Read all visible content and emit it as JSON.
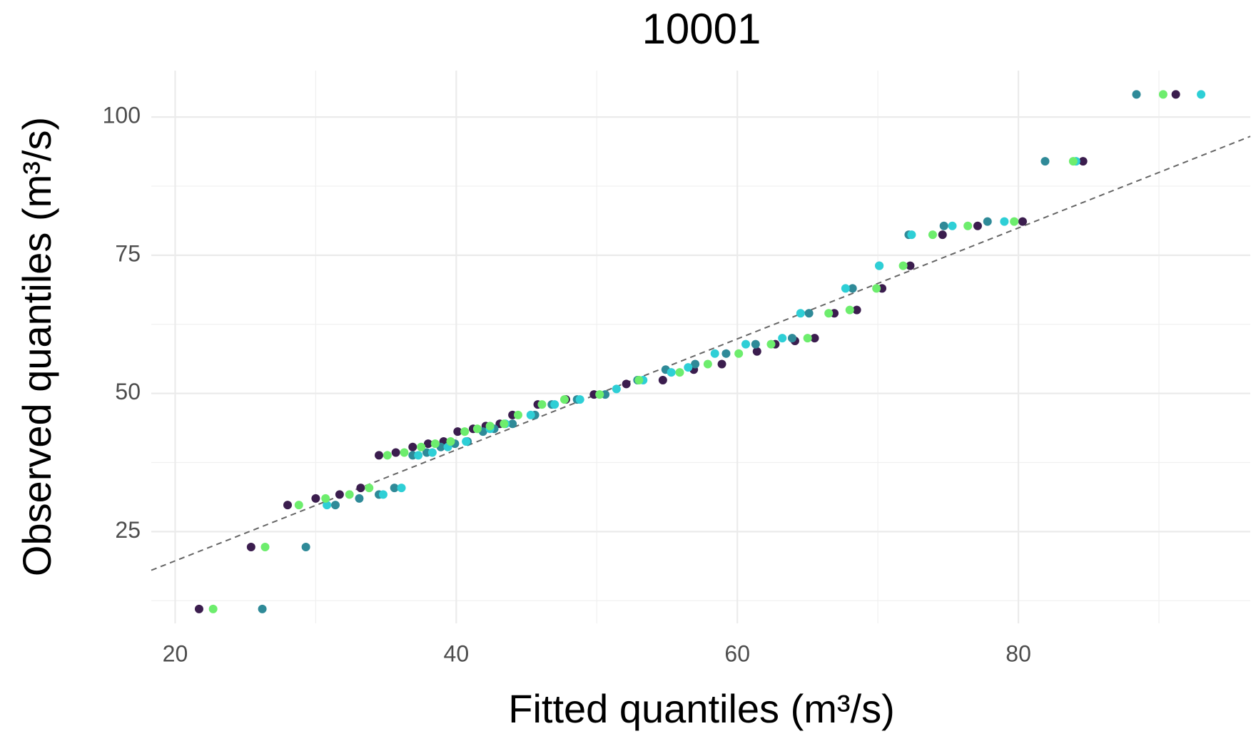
{
  "chart_data": {
    "type": "scatter",
    "title": "10001",
    "x_label": "Fitted quantiles (m³/s)",
    "y_label": "Observed quantiles (m³/s)",
    "xlim": [
      18.3,
      96.5
    ],
    "ylim": [
      8.4,
      108.4
    ],
    "xticks": [
      20,
      40,
      60,
      80
    ],
    "yticks": [
      25,
      50,
      75,
      100
    ],
    "x_minor_grid": [
      30,
      50,
      70,
      90
    ],
    "y_minor_grid": [
      12.5,
      37.5,
      62.5,
      87.5
    ],
    "grid": true,
    "reference_line": {
      "x": [
        18.3,
        96.5
      ],
      "y": [
        18.0,
        96.5
      ],
      "color": "#666666",
      "dashed": true
    },
    "series": [
      {
        "color": "#3b1d4e",
        "x": [
          21.7,
          25.4,
          28.0,
          30.0,
          31.7,
          33.2,
          34.5,
          35.7,
          36.9,
          38.0,
          39.1,
          40.1,
          41.2,
          42.1,
          43.1,
          44.0,
          45.8,
          47.8,
          49.8,
          52.1,
          54.7,
          56.9,
          58.9,
          61.4,
          62.7,
          64.1,
          65.5,
          66.9,
          68.5,
          70.3,
          72.3,
          74.6,
          77.1,
          80.3,
          84.6,
          91.2
        ],
        "y": [
          11.0,
          22.2,
          29.8,
          31.0,
          31.7,
          32.9,
          38.8,
          39.3,
          40.3,
          40.9,
          41.3,
          43.1,
          43.6,
          44.1,
          44.5,
          46.1,
          48.0,
          48.9,
          49.8,
          51.7,
          52.4,
          54.3,
          55.3,
          57.6,
          58.9,
          59.5,
          60.0,
          64.5,
          65.1,
          69.0,
          73.1,
          78.7,
          80.3,
          81.1,
          92.0,
          104.1
        ]
      },
      {
        "color": "#2f8a98",
        "x": [
          26.2,
          29.3,
          31.4,
          33.1,
          34.5,
          35.6,
          36.9,
          37.9,
          38.9,
          39.9,
          40.8,
          41.9,
          42.7,
          44.0,
          45.6,
          46.8,
          48.6,
          50.6,
          52.9,
          54.9,
          57.0,
          59.2,
          61.3,
          63.9,
          65.1,
          68.2,
          70.1,
          72.2,
          74.7,
          77.8,
          81.9,
          88.4
        ],
        "y": [
          11.0,
          22.2,
          29.8,
          31.0,
          31.7,
          32.9,
          38.8,
          39.3,
          40.3,
          40.9,
          41.3,
          43.1,
          43.6,
          44.5,
          46.1,
          48.0,
          48.9,
          49.8,
          52.4,
          54.3,
          55.3,
          57.2,
          58.9,
          60.0,
          64.5,
          69.0,
          73.1,
          78.7,
          80.3,
          81.1,
          92.0,
          104.1
        ]
      },
      {
        "color": "#2ecfd6",
        "x": [
          30.8,
          34.8,
          36.1,
          37.3,
          38.3,
          39.4,
          40.7,
          42.4,
          43.5,
          45.3,
          47.0,
          48.8,
          51.4,
          53.3,
          55.3,
          56.5,
          58.4,
          60.6,
          63.2,
          64.5,
          67.7,
          70.1,
          72.4,
          75.3,
          79.0,
          84.1,
          93.0
        ],
        "y": [
          29.8,
          31.7,
          32.9,
          38.8,
          39.3,
          40.3,
          41.3,
          43.6,
          44.5,
          46.1,
          48.0,
          48.9,
          50.8,
          52.4,
          53.8,
          54.7,
          57.2,
          58.9,
          60.0,
          64.5,
          69.0,
          73.1,
          78.7,
          80.3,
          81.1,
          92.0,
          104.1
        ]
      },
      {
        "color": "#6ded6d",
        "x": [
          22.7,
          26.4,
          28.8,
          30.7,
          32.4,
          33.8,
          35.1,
          36.3,
          37.5,
          38.5,
          39.6,
          40.6,
          41.5,
          42.4,
          43.4,
          44.4,
          46.1,
          47.7,
          50.2,
          53.0,
          55.9,
          57.9,
          60.1,
          62.4,
          65.0,
          66.5,
          68.0,
          69.9,
          71.8,
          73.9,
          76.4,
          79.7,
          83.9,
          90.3
        ],
        "y": [
          11.0,
          22.2,
          29.8,
          31.0,
          31.7,
          32.9,
          38.8,
          39.3,
          40.3,
          40.9,
          41.3,
          43.1,
          43.6,
          44.1,
          44.5,
          46.1,
          48.0,
          48.9,
          49.8,
          52.4,
          53.8,
          55.3,
          57.2,
          58.9,
          60.0,
          64.5,
          65.1,
          69.0,
          73.1,
          78.7,
          80.3,
          81.1,
          92.0,
          104.1
        ]
      }
    ]
  }
}
